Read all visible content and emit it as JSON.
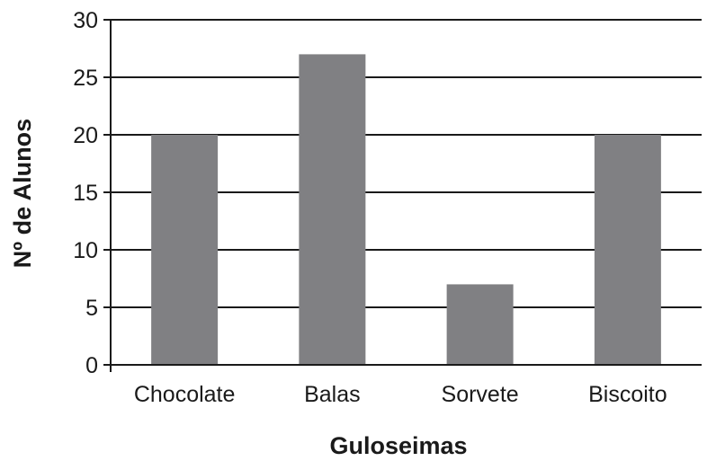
{
  "chart_data": {
    "type": "bar",
    "title": "",
    "xlabel": "Guloseimas",
    "ylabel": "Nº de Alunos",
    "categories": [
      "Chocolate",
      "Balas",
      "Sorvete",
      "Biscoito"
    ],
    "values": [
      20,
      27,
      7,
      20
    ],
    "ylim": [
      0,
      30
    ],
    "yticks": [
      0,
      5,
      10,
      15,
      20,
      25,
      30
    ],
    "grid": "horizontal",
    "bar_color": "#808083",
    "grid_color": "#1a1a1a"
  }
}
